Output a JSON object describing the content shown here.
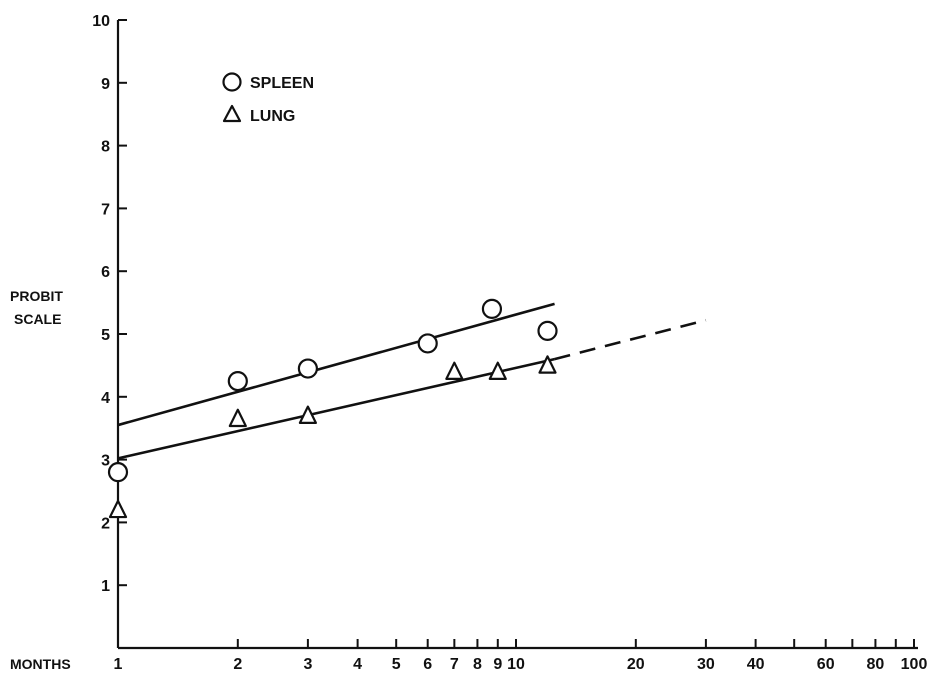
{
  "chart_data": {
    "type": "scatter",
    "xscale": "log",
    "xlim": [
      1,
      100
    ],
    "ylim": [
      0,
      10
    ],
    "grid": false,
    "legend_position": "top-left",
    "x_ticks": [
      {
        "value": 1,
        "label": "1"
      },
      {
        "value": 2,
        "label": "2"
      },
      {
        "value": 3,
        "label": "3"
      },
      {
        "value": 4,
        "label": "4"
      },
      {
        "value": 5,
        "label": "5"
      },
      {
        "value": 6,
        "label": "6"
      },
      {
        "value": 7,
        "label": "7"
      },
      {
        "value": 8,
        "label": "8"
      },
      {
        "value": 9,
        "label": "9"
      },
      {
        "value": 10,
        "label": "10"
      },
      {
        "value": 20,
        "label": "20"
      },
      {
        "value": 30,
        "label": "30"
      },
      {
        "value": 40,
        "label": "40"
      },
      {
        "value": 50,
        "label": ""
      },
      {
        "value": 60,
        "label": "60"
      },
      {
        "value": 70,
        "label": ""
      },
      {
        "value": 80,
        "label": "80"
      },
      {
        "value": 90,
        "label": ""
      },
      {
        "value": 100,
        "label": "100"
      }
    ],
    "y_ticks": [
      {
        "value": 1,
        "label": "1"
      },
      {
        "value": 2,
        "label": "2"
      },
      {
        "value": 3,
        "label": "3"
      },
      {
        "value": 4,
        "label": "4"
      },
      {
        "value": 5,
        "label": "5"
      },
      {
        "value": 6,
        "label": "6"
      },
      {
        "value": 7,
        "label": "7"
      },
      {
        "value": 8,
        "label": "8"
      },
      {
        "value": 9,
        "label": "9"
      },
      {
        "value": 10,
        "label": "10"
      }
    ],
    "xlabel": "MONTHS",
    "ylabel_line1": "PROBIT",
    "ylabel_line2": "SCALE",
    "series": [
      {
        "name": "SPLEEN",
        "marker": "circle",
        "points": [
          {
            "x": 1,
            "y": 2.8
          },
          {
            "x": 2,
            "y": 4.25
          },
          {
            "x": 3,
            "y": 4.45
          },
          {
            "x": 6,
            "y": 4.85
          },
          {
            "x": 8.7,
            "y": 5.4
          },
          {
            "x": 12,
            "y": 5.05
          }
        ],
        "fit": [
          {
            "from": [
              1,
              3.55
            ],
            "to": [
              12.5,
              5.48
            ],
            "style": "solid"
          }
        ]
      },
      {
        "name": "LUNG",
        "marker": "triangle",
        "points": [
          {
            "x": 1,
            "y": 2.2
          },
          {
            "x": 2,
            "y": 3.65
          },
          {
            "x": 3,
            "y": 3.7
          },
          {
            "x": 7,
            "y": 4.4
          },
          {
            "x": 9,
            "y": 4.4
          },
          {
            "x": 12,
            "y": 4.5
          }
        ],
        "fit": [
          {
            "from": [
              1,
              3.02
            ],
            "to": [
              12.5,
              4.6
            ],
            "style": "solid"
          },
          {
            "from": [
              12.5,
              4.6
            ],
            "to": [
              30,
              5.22
            ],
            "style": "dashed"
          }
        ]
      }
    ]
  }
}
